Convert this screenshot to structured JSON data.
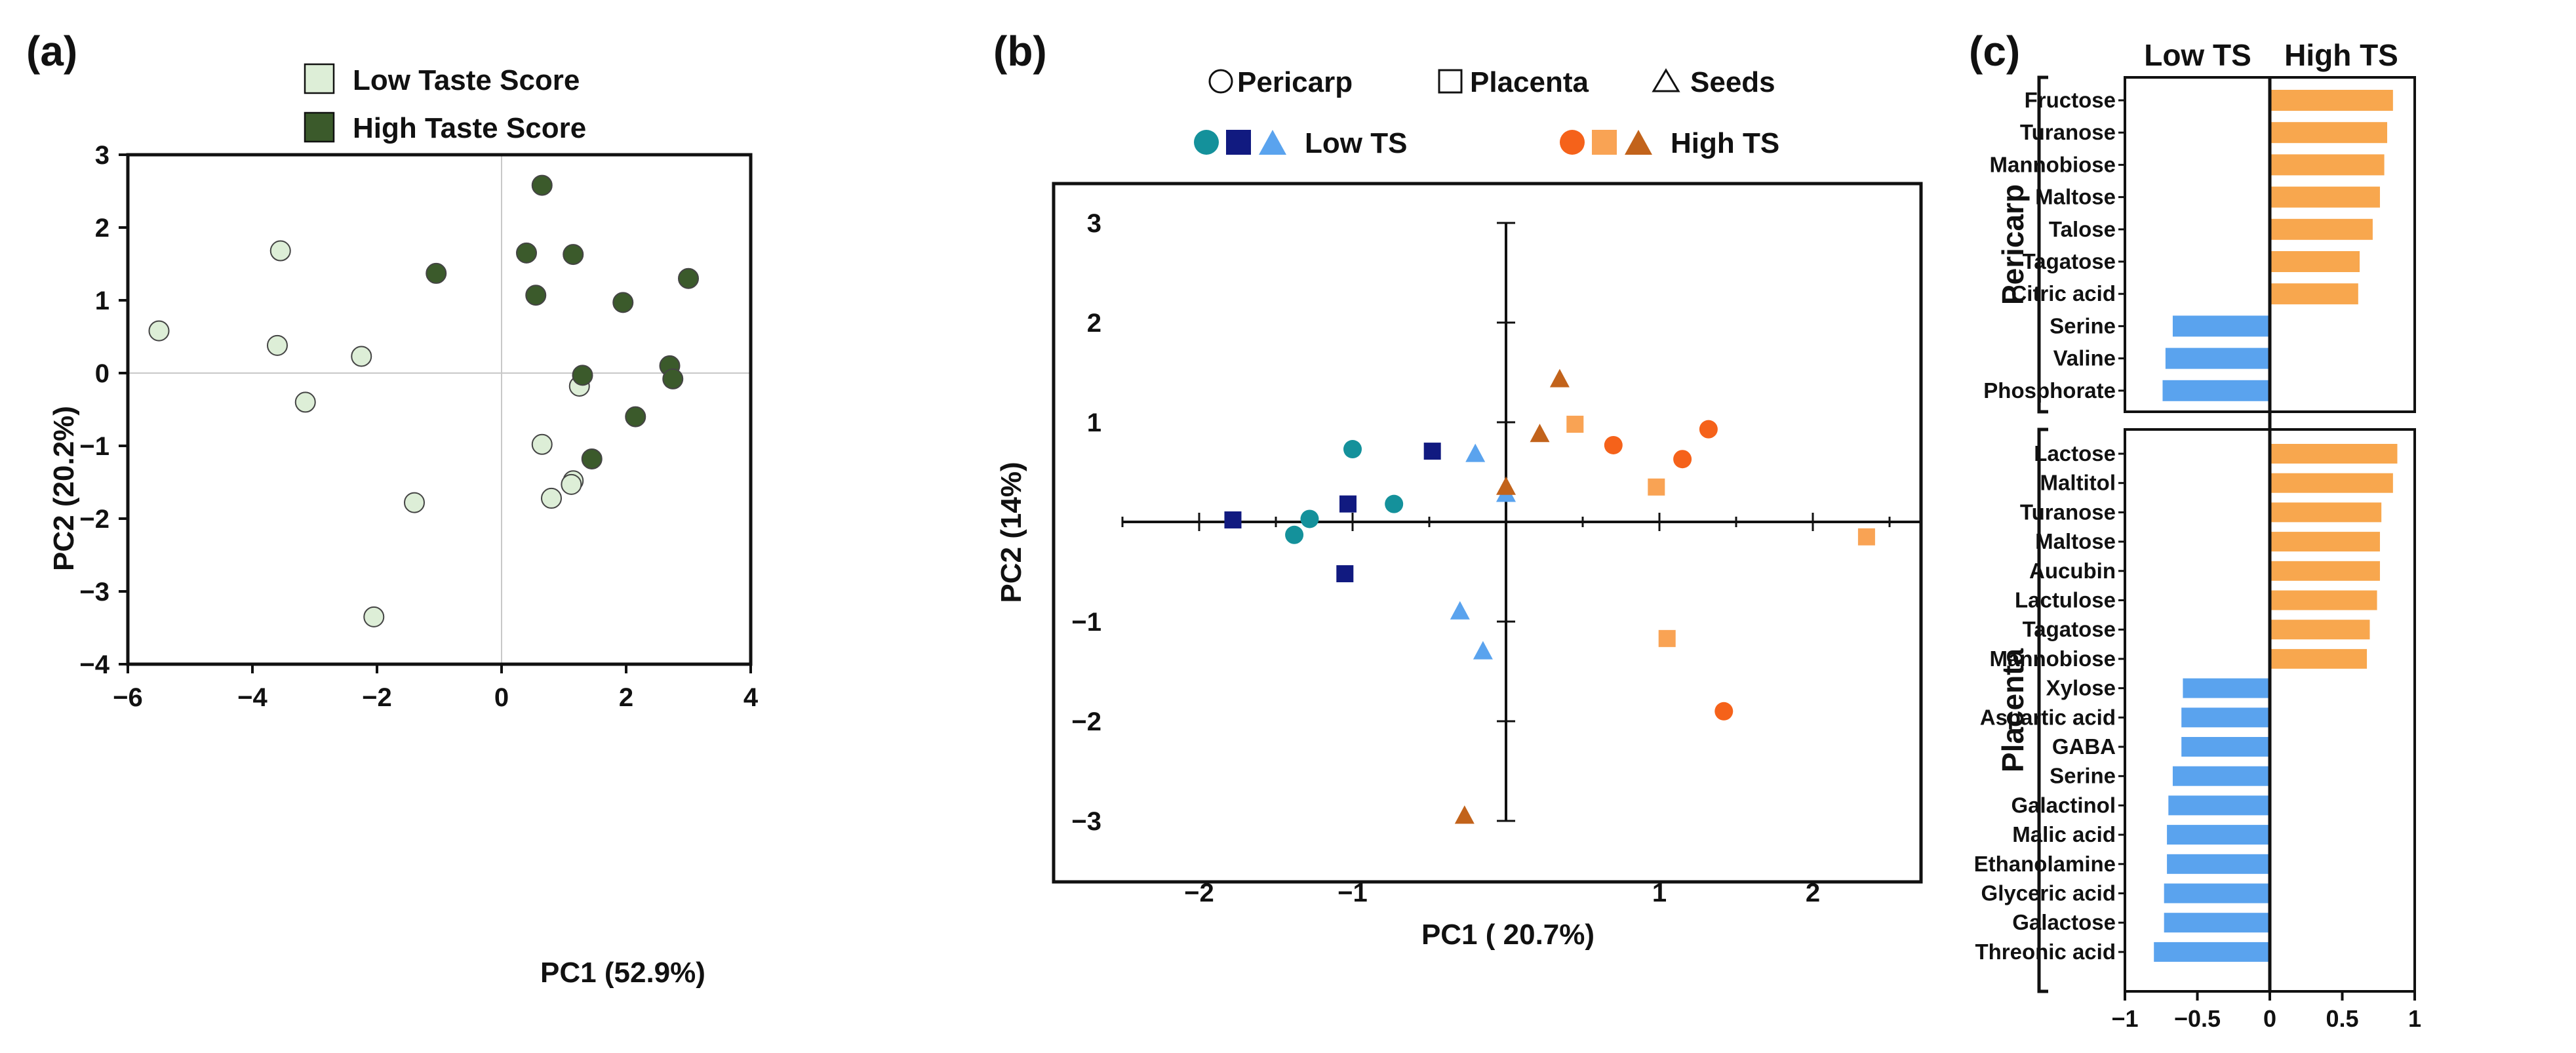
{
  "colors": {
    "low_taste": "#ddeed7",
    "high_taste": "#3b5a2b",
    "low_pericarp": "#14919b",
    "low_placenta": "#111a80",
    "low_seeds": "#5aa3ee",
    "high_pericarp": "#f5621a",
    "high_placenta": "#f9a354",
    "high_seeds": "#c2631b",
    "bar_low": "#5aa3ee",
    "bar_high": "#f8a74e"
  },
  "chart_data": [
    {
      "panel": "(a)",
      "type": "scatter",
      "xlabel": "PC1 (52.9%)",
      "ylabel": "PC2 (20.2%)",
      "xlim": [
        -6,
        4
      ],
      "ylim": [
        -4,
        3
      ],
      "xticks": [
        -6,
        -4,
        -2,
        0,
        2,
        4
      ],
      "yticks": [
        -4,
        -3,
        -2,
        -1,
        0,
        1,
        2,
        3
      ],
      "xtick_labels": [
        "−6",
        "−4",
        "−2",
        "0",
        "2",
        "4"
      ],
      "ytick_labels": [
        "−4",
        "−3",
        "−2",
        "−1",
        "0",
        "1",
        "2",
        "3"
      ],
      "legend": [
        {
          "label": "Low Taste Score",
          "series": "low"
        },
        {
          "label": "High Taste Score",
          "series": "high"
        }
      ],
      "series": [
        {
          "name": "Low Taste Score",
          "key": "low",
          "points": [
            [
              -5.5,
              0.58
            ],
            [
              -3.55,
              1.68
            ],
            [
              -3.6,
              0.38
            ],
            [
              -3.15,
              -0.4
            ],
            [
              -2.25,
              0.23
            ],
            [
              -1.4,
              -1.78
            ],
            [
              -2.05,
              -3.35
            ],
            [
              0.65,
              -0.98
            ],
            [
              0.8,
              -1.72
            ],
            [
              1.15,
              -1.48
            ],
            [
              1.12,
              -1.53
            ],
            [
              1.25,
              -0.18
            ]
          ]
        },
        {
          "name": "High Taste Score",
          "key": "high",
          "points": [
            [
              -1.05,
              1.37
            ],
            [
              0.4,
              1.65
            ],
            [
              0.55,
              1.07
            ],
            [
              0.65,
              2.58
            ],
            [
              1.15,
              1.63
            ],
            [
              1.95,
              0.97
            ],
            [
              3.0,
              1.3
            ],
            [
              1.3,
              -0.03
            ],
            [
              2.7,
              0.1
            ],
            [
              2.75,
              -0.08
            ],
            [
              2.15,
              -0.6
            ],
            [
              1.45,
              -1.18
            ]
          ]
        }
      ]
    },
    {
      "panel": "(b)",
      "type": "scatter",
      "xlabel": "PC1 ( 20.7%)",
      "ylabel": "PC2 (14%)",
      "xlim": [
        -2.5,
        2.7
      ],
      "ylim": [
        -3.3,
        3.3
      ],
      "xticks": [
        -2,
        -1,
        1,
        2
      ],
      "yticks": [
        -3,
        -2,
        -1,
        1,
        2,
        3
      ],
      "xtick_labels": [
        "−2",
        "−1",
        "1",
        "2"
      ],
      "ytick_labels": [
        "−3",
        "−2",
        "−1",
        "1",
        "2",
        "3"
      ],
      "legend_shapes": [
        "Pericarp",
        "Placenta",
        "Seeds"
      ],
      "legend_groups": [
        "Low TS",
        "High TS"
      ],
      "series": [
        {
          "name": "Low TS Pericarp",
          "key": "low_pericarp",
          "shape": "circle",
          "points": [
            [
              -1.0,
              0.73
            ],
            [
              -1.38,
              -0.13
            ],
            [
              -1.28,
              0.03
            ],
            [
              -0.73,
              0.18
            ]
          ]
        },
        {
          "name": "Low TS Placenta",
          "key": "low_placenta",
          "shape": "square",
          "points": [
            [
              -1.78,
              0.02
            ],
            [
              -1.03,
              0.18
            ],
            [
              -0.48,
              0.71
            ],
            [
              -1.05,
              -0.52
            ]
          ]
        },
        {
          "name": "Low TS Seeds",
          "key": "low_seeds",
          "shape": "triangle",
          "points": [
            [
              -0.2,
              0.68
            ],
            [
              -0.3,
              -0.9
            ],
            [
              -0.15,
              -1.3
            ],
            [
              0.0,
              0.28
            ]
          ]
        },
        {
          "name": "High TS Pericarp",
          "key": "high_pericarp",
          "shape": "circle",
          "points": [
            [
              0.7,
              0.77
            ],
            [
              1.32,
              0.93
            ],
            [
              1.15,
              0.63
            ],
            [
              1.42,
              -1.9
            ]
          ]
        },
        {
          "name": "High TS Placenta",
          "key": "high_placenta",
          "shape": "square",
          "points": [
            [
              0.45,
              0.98
            ],
            [
              0.98,
              0.35
            ],
            [
              1.05,
              -1.17
            ],
            [
              2.35,
              -0.15
            ]
          ]
        },
        {
          "name": "High TS Seeds",
          "key": "high_seeds",
          "shape": "triangle",
          "points": [
            [
              0.35,
              1.43
            ],
            [
              0.22,
              0.88
            ],
            [
              0.0,
              0.35
            ],
            [
              -0.27,
              -2.95
            ]
          ]
        }
      ]
    },
    {
      "panel": "(c)",
      "type": "bar",
      "orientation": "horizontal",
      "xlim": [
        -1,
        1
      ],
      "xticks": [
        -1,
        -0.5,
        0,
        0.5,
        1
      ],
      "xtick_labels": [
        "−1",
        "−0.5",
        "0",
        "0.5",
        "1"
      ],
      "header_low": "Low TS",
      "header_high": "High TS",
      "groups": [
        {
          "name": "Pericarp",
          "categories": [
            "Fructose",
            "Turanose",
            "Mannobiose",
            "Maltose",
            "Talose",
            "Tagatose",
            "Citric acid",
            "Serine",
            "Valine",
            "Phosphorate"
          ],
          "values": [
            0.85,
            0.81,
            0.79,
            0.76,
            0.71,
            0.62,
            0.61,
            -0.67,
            -0.72,
            -0.74
          ]
        },
        {
          "name": "Placenta",
          "categories": [
            "Lactose",
            "Maltitol",
            "Turanose",
            "Maltose",
            "Aucubin",
            "Lactulose",
            "Tagatose",
            "Mannobiose",
            "Xylose",
            "Aspartic acid",
            "GABA",
            "Serine",
            "Galactinol",
            "Malic acid",
            "Ethanolamine",
            "Glyceric acid",
            "Galactose",
            "Threonic acid"
          ],
          "values": [
            0.88,
            0.85,
            0.77,
            0.76,
            0.76,
            0.74,
            0.69,
            0.67,
            -0.6,
            -0.61,
            -0.61,
            -0.67,
            -0.7,
            -0.71,
            -0.71,
            -0.73,
            -0.73,
            -0.8
          ]
        }
      ]
    }
  ]
}
